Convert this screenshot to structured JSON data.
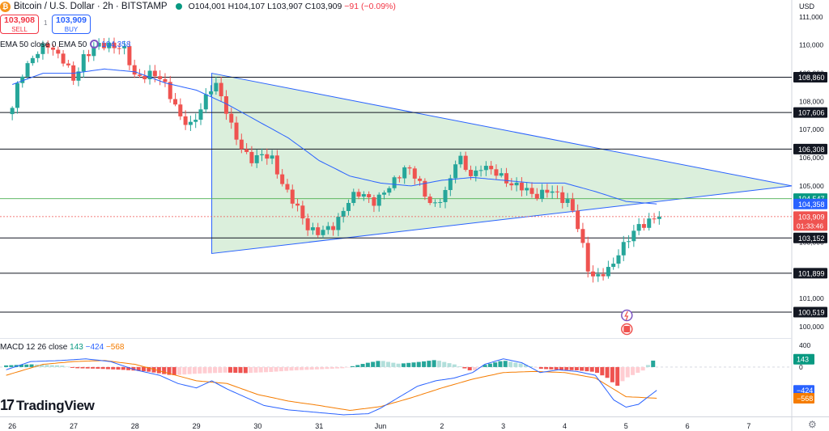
{
  "header": {
    "title": "Bitcoin / U.S. Dollar · 2h · BITSTAMP",
    "logo_letter": "₿",
    "ohlc": "O104,001 H104,107 L103,907 C103,909",
    "change": "−91 (−0.09%)"
  },
  "trade": {
    "sell_price": "103,908",
    "sell_label": "SELL",
    "buy_price": "103,909",
    "buy_label": "BUY",
    "spread": "1"
  },
  "ema_legend": {
    "label": "EMA 50 close 0 EMA 50",
    "value": "104,358"
  },
  "macd_legend": {
    "label": "MACD 12 26 close",
    "hist": "143",
    "macd": "−424",
    "signal": "−568"
  },
  "branding": {
    "name": "TradingView"
  },
  "currency": "USD",
  "colors": {
    "up": "#26a69a",
    "down": "#ef5350",
    "ema": "#2962ff",
    "triangle_fill": "#c8e6c9",
    "triangle_line": "#2962ff",
    "macd": "#2962ff",
    "signal": "#f57c00",
    "hist_up_strong": "#26a69a",
    "hist_up_weak": "#b2dfdb",
    "hist_down_strong": "#ef5350",
    "hist_down_weak": "#ffcdd2"
  },
  "chart_data": {
    "type": "candlestick",
    "title": "Bitcoin / U.S. Dollar · 2h · BITSTAMP",
    "x_ticks": [
      "26",
      "27",
      "28",
      "29",
      "30",
      "31",
      "Jun",
      "2",
      "3",
      "4",
      "5",
      "6",
      "7"
    ],
    "y_ticks": [
      "111,000",
      "110,000",
      "109,000",
      "108,000",
      "107,000",
      "106,000",
      "105,000",
      "104,000",
      "103,000",
      "102,000",
      "101,000",
      "100,000"
    ],
    "ylim": [
      99600,
      111600
    ],
    "horizontal_levels": [
      {
        "value": 108860,
        "label": "108,860"
      },
      {
        "value": 107606,
        "label": "107,606"
      },
      {
        "value": 106308,
        "label": "106,308"
      },
      {
        "value": 104547,
        "label": "104,547",
        "color": "green"
      },
      {
        "value": 103152,
        "label": "103,152"
      },
      {
        "value": 101899,
        "label": "101,899"
      },
      {
        "value": 100519,
        "label": "100,519"
      }
    ],
    "price_tags": [
      {
        "value": 104358,
        "label": "104,358",
        "series": "EMA 50"
      },
      {
        "value": 103909,
        "label": "103,909",
        "sub": "01:33:46",
        "series": "Last price"
      }
    ],
    "triangle": {
      "upper_line": [
        {
          "x": 29.25,
          "y": 109000
        },
        {
          "x": 7.7,
          "y": 105000
        }
      ],
      "lower_line": [
        {
          "x": 29.25,
          "y": 102600
        },
        {
          "x": 7.7,
          "y": 105000
        }
      ]
    },
    "candle_keyframes": [
      [
        26.0,
        107700
      ],
      [
        26.12,
        108900
      ],
      [
        26.3,
        109500
      ],
      [
        26.6,
        110050
      ],
      [
        26.85,
        109400
      ],
      [
        27.0,
        108700
      ],
      [
        27.15,
        109600
      ],
      [
        27.35,
        109900
      ],
      [
        27.55,
        110050
      ],
      [
        27.8,
        109900
      ],
      [
        28.0,
        108900
      ],
      [
        28.2,
        108950
      ],
      [
        28.45,
        108800
      ],
      [
        28.6,
        108150
      ],
      [
        28.75,
        107300
      ],
      [
        28.9,
        107150
      ],
      [
        29.1,
        107900
      ],
      [
        29.3,
        108650
      ],
      [
        29.45,
        108000
      ],
      [
        29.6,
        106900
      ],
      [
        29.75,
        106200
      ],
      [
        29.9,
        106000
      ],
      [
        30.05,
        106100
      ],
      [
        30.25,
        105900
      ],
      [
        30.35,
        105350
      ],
      [
        30.55,
        104500
      ],
      [
        30.8,
        103600
      ],
      [
        31.0,
        103300
      ],
      [
        31.2,
        103500
      ],
      [
        31.5,
        104500
      ],
      [
        31.7,
        104800
      ],
      [
        31.9,
        104400
      ],
      [
        32.0,
        104550
      ],
      [
        32.2,
        105200
      ],
      [
        32.4,
        105600
      ],
      [
        32.6,
        105300
      ],
      [
        32.75,
        104600
      ],
      [
        32.9,
        104200
      ],
      [
        33.1,
        105000
      ],
      [
        33.25,
        106150
      ],
      [
        33.4,
        105500
      ],
      [
        33.5,
        105300
      ],
      [
        33.65,
        105800
      ],
      [
        33.8,
        105500
      ],
      [
        34.0,
        105300
      ],
      [
        34.2,
        105000
      ],
      [
        34.5,
        104700
      ],
      [
        34.75,
        104800
      ],
      [
        34.95,
        104600
      ],
      [
        35.05,
        104500
      ],
      [
        35.15,
        104000
      ],
      [
        35.25,
        103200
      ],
      [
        35.4,
        101900
      ],
      [
        35.55,
        101800
      ],
      [
        35.75,
        102000
      ],
      [
        35.9,
        102800
      ],
      [
        36.2,
        103500
      ],
      [
        36.4,
        103850
      ],
      [
        36.5,
        103909
      ]
    ],
    "ema50_points": [
      [
        26.0,
        108600
      ],
      [
        26.5,
        109000
      ],
      [
        27.0,
        109000
      ],
      [
        27.5,
        109150
      ],
      [
        28.0,
        109050
      ],
      [
        28.5,
        108650
      ],
      [
        29.0,
        108400
      ],
      [
        29.5,
        107900
      ],
      [
        30.0,
        107300
      ],
      [
        30.5,
        106700
      ],
      [
        31.0,
        105900
      ],
      [
        31.5,
        105350
      ],
      [
        32.0,
        105100
      ],
      [
        32.5,
        105000
      ],
      [
        33.0,
        105200
      ],
      [
        33.5,
        105300
      ],
      [
        34.0,
        105200
      ],
      [
        34.5,
        105100
      ],
      [
        35.0,
        105100
      ],
      [
        35.5,
        104800
      ],
      [
        36.0,
        104450
      ],
      [
        36.5,
        104358
      ]
    ],
    "macd": {
      "ylim": [
        -900,
        500
      ],
      "y_ticks": [
        "400",
        "0"
      ],
      "tags": [
        {
          "value": 143,
          "label": "143",
          "series": "Histogram"
        },
        {
          "value": -424,
          "label": "−424",
          "series": "MACD"
        },
        {
          "value": -568,
          "label": "−568",
          "series": "Signal"
        }
      ],
      "macd_points": [
        [
          25.9,
          -50
        ],
        [
          26.3,
          100
        ],
        [
          26.8,
          120
        ],
        [
          27.2,
          150
        ],
        [
          27.6,
          100
        ],
        [
          28.0,
          -50
        ],
        [
          28.4,
          -150
        ],
        [
          28.7,
          -300
        ],
        [
          29.0,
          -380
        ],
        [
          29.25,
          -250
        ],
        [
          29.5,
          -400
        ],
        [
          29.8,
          -550
        ],
        [
          30.1,
          -700
        ],
        [
          30.5,
          -780
        ],
        [
          31.0,
          -830
        ],
        [
          31.4,
          -870
        ],
        [
          31.8,
          -850
        ],
        [
          32.0,
          -750
        ],
        [
          32.3,
          -550
        ],
        [
          32.6,
          -350
        ],
        [
          32.9,
          -250
        ],
        [
          33.2,
          -200
        ],
        [
          33.5,
          -100
        ],
        [
          33.7,
          50
        ],
        [
          34.0,
          150
        ],
        [
          34.3,
          80
        ],
        [
          34.6,
          -100
        ],
        [
          34.9,
          -50
        ],
        [
          35.2,
          -80
        ],
        [
          35.5,
          -150
        ],
        [
          35.8,
          -600
        ],
        [
          36.0,
          -730
        ],
        [
          36.2,
          -680
        ],
        [
          36.5,
          -424
        ]
      ],
      "signal_points": [
        [
          25.9,
          -150
        ],
        [
          26.5,
          50
        ],
        [
          27.0,
          100
        ],
        [
          27.5,
          120
        ],
        [
          28.0,
          50
        ],
        [
          28.5,
          -100
        ],
        [
          29.0,
          -250
        ],
        [
          29.5,
          -300
        ],
        [
          30.0,
          -500
        ],
        [
          30.5,
          -620
        ],
        [
          31.0,
          -700
        ],
        [
          31.5,
          -790
        ],
        [
          32.0,
          -720
        ],
        [
          32.5,
          -560
        ],
        [
          33.0,
          -380
        ],
        [
          33.5,
          -220
        ],
        [
          34.0,
          -100
        ],
        [
          34.5,
          -80
        ],
        [
          35.0,
          -100
        ],
        [
          35.5,
          -200
        ],
        [
          36.0,
          -540
        ],
        [
          36.5,
          -568
        ]
      ],
      "hist_keyframes": [
        [
          25.9,
          30
        ],
        [
          26.3,
          50
        ],
        [
          26.8,
          30
        ],
        [
          27.0,
          -20
        ],
        [
          27.4,
          -30
        ],
        [
          27.8,
          -50
        ],
        [
          28.2,
          -80
        ],
        [
          28.6,
          -150
        ],
        [
          29.0,
          -120
        ],
        [
          29.5,
          -100
        ],
        [
          29.8,
          -110
        ],
        [
          30.2,
          -90
        ],
        [
          30.6,
          -60
        ],
        [
          31.0,
          -40
        ],
        [
          31.4,
          -20
        ],
        [
          31.8,
          80
        ],
        [
          32.0,
          120
        ],
        [
          32.3,
          60
        ],
        [
          32.6,
          90
        ],
        [
          32.9,
          130
        ],
        [
          33.2,
          50
        ],
        [
          33.5,
          -80
        ],
        [
          33.7,
          40
        ],
        [
          34.0,
          120
        ],
        [
          34.3,
          60
        ],
        [
          34.6,
          -30
        ],
        [
          34.9,
          -50
        ],
        [
          35.2,
          -60
        ],
        [
          35.5,
          -90
        ],
        [
          35.7,
          -200
        ],
        [
          35.85,
          -350
        ],
        [
          36.0,
          -200
        ],
        [
          36.3,
          -50
        ],
        [
          36.4,
          100
        ],
        [
          36.5,
          143
        ]
      ]
    }
  }
}
